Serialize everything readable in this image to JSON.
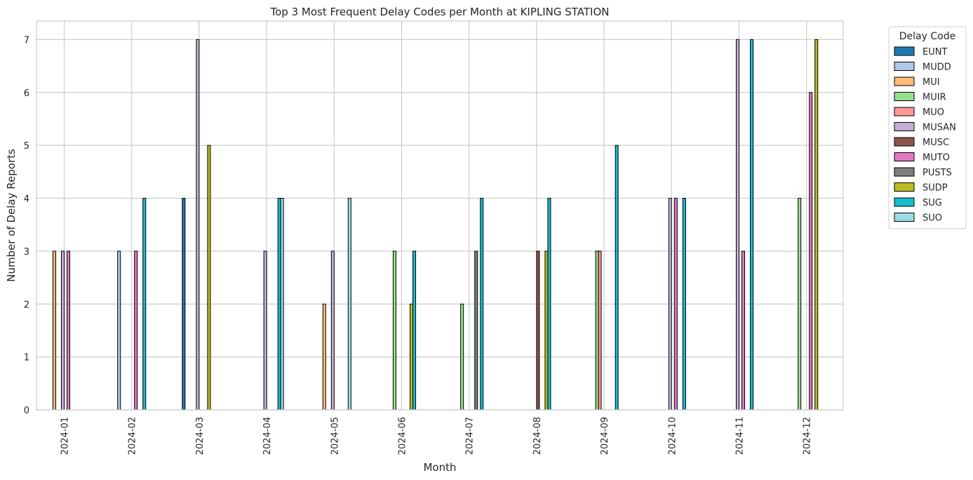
{
  "chart_data": {
    "type": "bar",
    "title": "Top 3 Most Frequent Delay Codes per Month at KIPLING STATION",
    "xlabel": "Month",
    "ylabel": "Number of Delay Reports",
    "ylim": [
      0,
      7.35
    ],
    "yticks": [
      0,
      1,
      2,
      3,
      4,
      5,
      6,
      7
    ],
    "grid": true,
    "legend_title": "Delay Code",
    "legend_position": "outside-right",
    "categories": [
      "2024-01",
      "2024-02",
      "2024-03",
      "2024-04",
      "2024-05",
      "2024-06",
      "2024-07",
      "2024-08",
      "2024-09",
      "2024-10",
      "2024-11",
      "2024-12"
    ],
    "series": [
      {
        "name": "EUNT",
        "color": "#1f77b4",
        "values": [
          null,
          null,
          4,
          null,
          null,
          null,
          null,
          null,
          null,
          null,
          null,
          null
        ]
      },
      {
        "name": "MUDD",
        "color": "#aec7e8",
        "values": [
          null,
          3,
          null,
          null,
          null,
          null,
          null,
          null,
          null,
          null,
          null,
          null
        ]
      },
      {
        "name": "MUI",
        "color": "#ffbb78",
        "values": [
          3,
          null,
          null,
          null,
          2,
          null,
          null,
          null,
          null,
          null,
          null,
          null
        ]
      },
      {
        "name": "MUIR",
        "color": "#98df8a",
        "values": [
          null,
          null,
          null,
          null,
          null,
          3,
          2,
          null,
          3,
          null,
          null,
          4
        ]
      },
      {
        "name": "MUO",
        "color": "#ff9896",
        "values": [
          null,
          null,
          null,
          null,
          null,
          null,
          null,
          null,
          3,
          null,
          null,
          null
        ]
      },
      {
        "name": "MUSAN",
        "color": "#c5b0d5",
        "values": [
          3,
          null,
          7,
          3,
          3,
          null,
          null,
          null,
          null,
          4,
          7,
          null
        ]
      },
      {
        "name": "MUSC",
        "color": "#8c564b",
        "values": [
          null,
          null,
          null,
          null,
          null,
          null,
          null,
          3,
          null,
          null,
          null,
          null
        ]
      },
      {
        "name": "MUTO",
        "color": "#e377c2",
        "values": [
          3,
          3,
          null,
          null,
          null,
          null,
          null,
          null,
          null,
          4,
          3,
          6
        ]
      },
      {
        "name": "PUSTS",
        "color": "#7f7f7f",
        "values": [
          null,
          null,
          null,
          null,
          null,
          null,
          3,
          null,
          null,
          null,
          null,
          null
        ]
      },
      {
        "name": "SUDP",
        "color": "#bcbd22",
        "values": [
          null,
          null,
          5,
          null,
          null,
          2,
          null,
          3,
          null,
          null,
          null,
          7
        ]
      },
      {
        "name": "SUG",
        "color": "#17becf",
        "values": [
          null,
          4,
          null,
          4,
          null,
          3,
          4,
          4,
          5,
          4,
          7,
          null
        ]
      },
      {
        "name": "SUO",
        "color": "#9edae5",
        "values": [
          null,
          null,
          null,
          4,
          4,
          null,
          null,
          null,
          null,
          null,
          null,
          null
        ]
      }
    ]
  }
}
